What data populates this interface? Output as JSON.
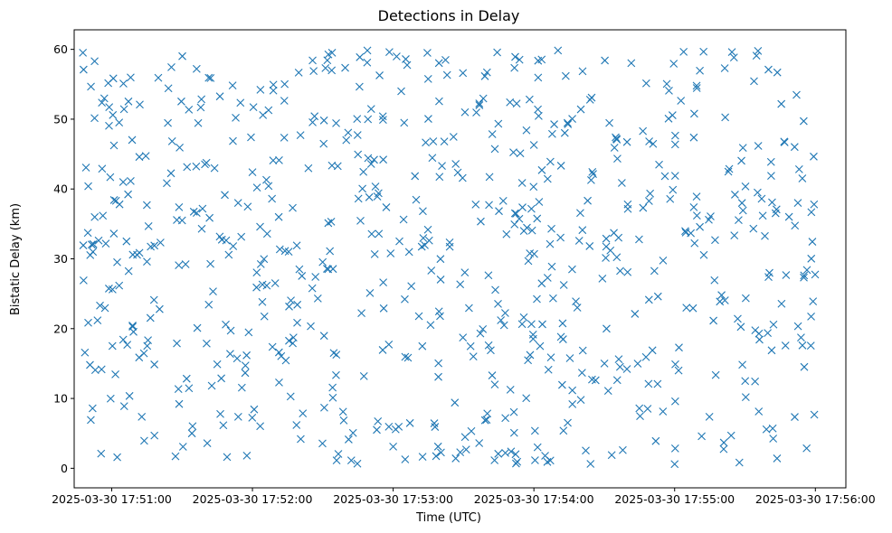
{
  "chart_data": {
    "type": "scatter",
    "title": "Detections in Delay",
    "xlabel": "Time (UTC)",
    "ylabel": "Bistatic Delay (km)",
    "marker": "x",
    "color": "#1f77b4",
    "grid": false,
    "legend": "none",
    "x_tick_labels": [
      "2025-03-30 17:51:00",
      "2025-03-30 17:52:00",
      "2025-03-30 17:53:00",
      "2025-03-30 17:54:00",
      "2025-03-30 17:55:00",
      "2025-03-30 17:56:00"
    ],
    "y_ticks": [
      0,
      10,
      20,
      30,
      40,
      50,
      60
    ],
    "xlim": [
      "2025-03-30 17:50:44",
      "2025-03-30 17:56:13"
    ],
    "ylim": [
      -2.8,
      62.8
    ],
    "x_start": "2025-03-30 17:50:47",
    "x_end": "2025-03-30 17:56:00",
    "y_range": [
      0.5,
      59.9
    ],
    "point_count": 720,
    "points": [
      {
        "x": "2025-03-30 17:50:48",
        "y": 57.1
      },
      {
        "x": "2025-03-30 17:50:50",
        "y": 40.4
      },
      {
        "x": "2025-03-30 17:50:52",
        "y": 31.0
      },
      {
        "x": "2025-03-30 17:50:55",
        "y": 23.3
      },
      {
        "x": "2025-03-30 17:51:05",
        "y": 55.1
      },
      {
        "x": "2025-03-30 17:51:15",
        "y": 37.7
      },
      {
        "x": "2025-03-30 17:51:30",
        "y": 35.5
      },
      {
        "x": "2025-03-30 17:51:45",
        "y": 14.9
      },
      {
        "x": "2025-03-30 17:52:00",
        "y": 42.4
      },
      {
        "x": "2025-03-30 17:52:20",
        "y": 28.5
      },
      {
        "x": "2025-03-30 17:52:40",
        "y": 47.0
      },
      {
        "x": "2025-03-30 17:53:00",
        "y": 3.1
      },
      {
        "x": "2025-03-30 17:53:20",
        "y": 21.8
      },
      {
        "x": "2025-03-30 17:53:40",
        "y": 56.7
      },
      {
        "x": "2025-03-30 17:54:00",
        "y": 46.3
      },
      {
        "x": "2025-03-30 17:54:20",
        "y": 9.8
      },
      {
        "x": "2025-03-30 17:54:40",
        "y": 37.8
      },
      {
        "x": "2025-03-30 17:55:00",
        "y": 0.6
      },
      {
        "x": "2025-03-30 17:55:20",
        "y": 24.8
      },
      {
        "x": "2025-03-30 17:55:40",
        "y": 57.1
      },
      {
        "x": "2025-03-30 17:55:59",
        "y": 23.9
      }
    ]
  }
}
